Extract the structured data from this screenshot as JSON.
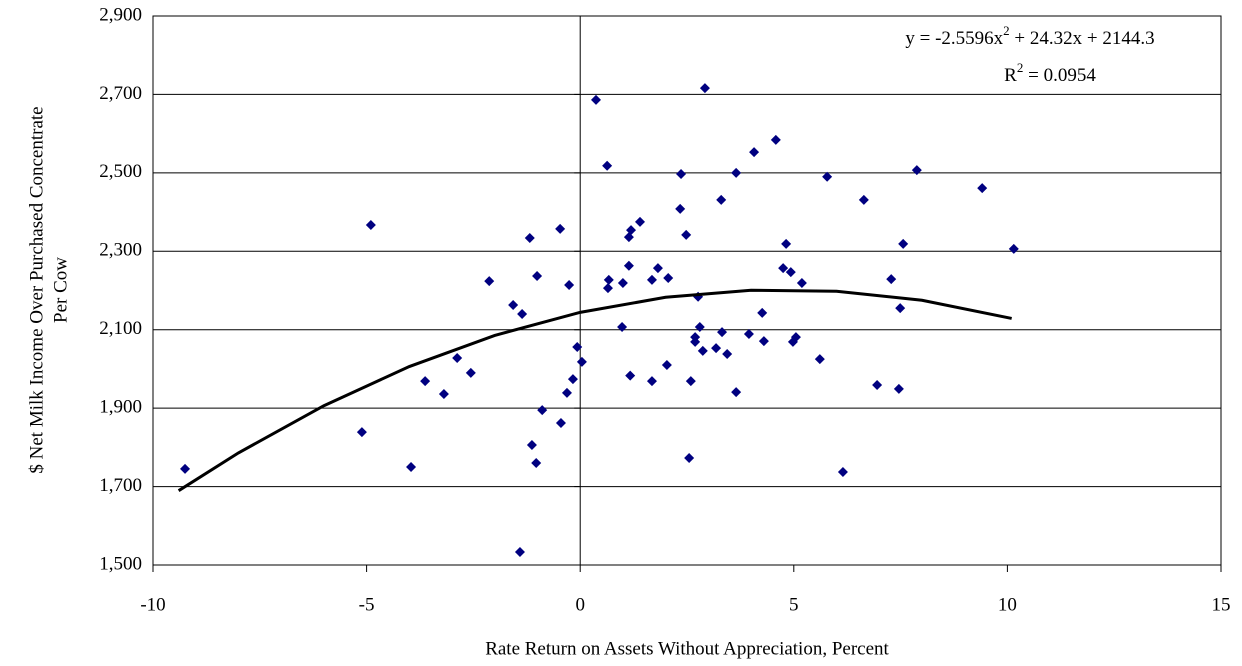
{
  "chart_data": {
    "type": "scatter",
    "xlabel": "Rate Return on Assets Without Appreciation, Percent",
    "ylabel": [
      "$ Net Milk Income Over Purchased Concentrate",
      "Per Cow"
    ],
    "annotations": {
      "equation": [
        "y = -2.5596x",
        "2",
        " + 24.32x + 2144.3"
      ],
      "r2": [
        "R",
        "2",
        " = 0.0954"
      ]
    },
    "xlim": [
      -10,
      15
    ],
    "xticks": [
      -10,
      -5,
      0,
      5,
      10,
      15
    ],
    "ylim": [
      1500,
      2900
    ],
    "yticks": [
      {
        "value": 1500,
        "label": "1,500"
      },
      {
        "value": 1700,
        "label": "1,700"
      },
      {
        "value": 1900,
        "label": "1,900"
      },
      {
        "value": 2100,
        "label": "2,100"
      },
      {
        "value": 2300,
        "label": "2,300"
      },
      {
        "value": 2500,
        "label": "2,500"
      },
      {
        "value": 2700,
        "label": "2,700"
      },
      {
        "value": 2900,
        "label": "2,900"
      }
    ],
    "grid": true,
    "series": [
      {
        "style": "markers",
        "color": "#000080",
        "x": [
          -9.25,
          -4.9,
          -5.11,
          -3.96,
          -3.63,
          -3.19,
          -2.88,
          -2.56,
          -2.13,
          -1.57,
          -1.36,
          -1.41,
          -1.18,
          -1.13,
          -1.01,
          -1.03,
          -0.89,
          -0.47,
          -0.45,
          -0.31,
          -0.26,
          -0.17,
          -0.07,
          0.04,
          0.37,
          0.63,
          0.65,
          0.67,
          0.98,
          1.0,
          1.14,
          1.14,
          1.19,
          1.4,
          1.17,
          1.68,
          1.82,
          2.06,
          1.68,
          2.03,
          2.36,
          2.34,
          2.48,
          2.55,
          2.59,
          2.69,
          2.69,
          2.76,
          2.8,
          2.87,
          2.92,
          3.18,
          3.3,
          3.32,
          3.44,
          3.65,
          3.65,
          3.95,
          4.07,
          4.3,
          4.26,
          4.58,
          4.75,
          4.82,
          4.93,
          4.98,
          5.05,
          5.19,
          5.61,
          5.78,
          6.15,
          6.64,
          6.95,
          7.28,
          7.46,
          7.49,
          7.56,
          7.88,
          9.41,
          10.15
        ],
        "values": [
          1745,
          2367,
          1839,
          1750,
          1969,
          1936,
          2028,
          1990,
          2224,
          2163,
          2140,
          1533,
          2334,
          1806,
          2237,
          1760,
          1895,
          2357,
          1862,
          1939,
          2214,
          1974,
          2056,
          2018,
          2686,
          2518,
          2206,
          2227,
          2107,
          2219,
          2263,
          2336,
          2354,
          2375,
          1983,
          2227,
          2257,
          2232,
          1969,
          2010,
          2497,
          2408,
          2342,
          1773,
          1969,
          2081,
          2069,
          2184,
          2107,
          2046,
          2716,
          2053,
          2431,
          2094,
          2038,
          2500,
          1941,
          2089,
          2553,
          2071,
          2143,
          2584,
          2257,
          2319,
          2247,
          2069,
          2081,
          2219,
          2025,
          2490,
          1737,
          2431,
          1959,
          2229,
          1949,
          2155,
          2319,
          2507,
          2461,
          2306
        ]
      },
      {
        "style": "line",
        "color": "#000000",
        "x": [
          -9.4,
          -8,
          -6,
          -4,
          -2,
          0,
          2,
          4,
          6,
          8,
          10.1
        ],
        "values": [
          1689.5,
          1785.9,
          1906.2,
          2006.1,
          2085.4,
          2144.3,
          2182.7,
          2200.6,
          2198.1,
          2175.1,
          2128.8
        ]
      }
    ]
  }
}
